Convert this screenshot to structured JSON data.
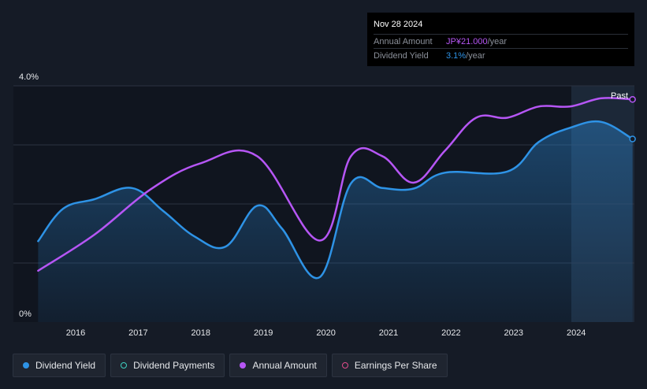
{
  "tooltip": {
    "date": "Nov 28 2024",
    "rows": [
      {
        "label": "Annual Amount",
        "value": "JP¥21.000",
        "suffix": "/year",
        "color": "#b656f5"
      },
      {
        "label": "Dividend Yield",
        "value": "3.1%",
        "suffix": "/year",
        "color": "#2e93e6"
      }
    ]
  },
  "legend": [
    {
      "label": "Dividend Yield",
      "color": "#2e93e6",
      "style": "filled"
    },
    {
      "label": "Dividend Payments",
      "color": "#3fd0c0",
      "style": "hollow"
    },
    {
      "label": "Annual Amount",
      "color": "#b656f5",
      "style": "filled"
    },
    {
      "label": "Earnings Per Share",
      "color": "#e04c8c",
      "style": "hollow"
    }
  ],
  "past_label": "Past",
  "chart_data": {
    "type": "line",
    "y_axis": {
      "ticks": [
        "4.0%",
        "0%"
      ],
      "range_percent": [
        0,
        4.0
      ]
    },
    "x_axis": {
      "ticks": [
        "2016",
        "2017",
        "2018",
        "2019",
        "2020",
        "2021",
        "2022",
        "2023",
        "2024"
      ]
    },
    "grid": true,
    "colors": {
      "yield": "#2e93e6",
      "annual": "#b656f5"
    },
    "series": [
      {
        "name": "Dividend Yield",
        "unit": "%",
        "points": [
          [
            2015.4,
            1.37
          ],
          [
            2015.8,
            1.92
          ],
          [
            2016.3,
            2.08
          ],
          [
            2016.9,
            2.27
          ],
          [
            2017.4,
            1.88
          ],
          [
            2017.9,
            1.45
          ],
          [
            2018.4,
            1.28
          ],
          [
            2018.9,
            1.97
          ],
          [
            2019.3,
            1.58
          ],
          [
            2019.9,
            0.76
          ],
          [
            2020.4,
            2.35
          ],
          [
            2020.9,
            2.27
          ],
          [
            2021.4,
            2.26
          ],
          [
            2021.9,
            2.53
          ],
          [
            2022.9,
            2.55
          ],
          [
            2023.4,
            3.05
          ],
          [
            2023.9,
            3.29
          ],
          [
            2024.4,
            3.39
          ],
          [
            2024.9,
            3.1
          ]
        ]
      },
      {
        "name": "Annual Amount",
        "points": [
          [
            2015.4,
            0.87
          ],
          [
            2016.3,
            1.48
          ],
          [
            2017.2,
            2.25
          ],
          [
            2018.0,
            2.69
          ],
          [
            2018.9,
            2.81
          ],
          [
            2019.9,
            1.38
          ],
          [
            2020.4,
            2.81
          ],
          [
            2020.9,
            2.81
          ],
          [
            2021.4,
            2.36
          ],
          [
            2021.9,
            2.9
          ],
          [
            2022.4,
            3.46
          ],
          [
            2022.9,
            3.46
          ],
          [
            2023.4,
            3.65
          ],
          [
            2023.9,
            3.65
          ],
          [
            2024.4,
            3.79
          ],
          [
            2024.9,
            3.77
          ]
        ]
      }
    ]
  }
}
